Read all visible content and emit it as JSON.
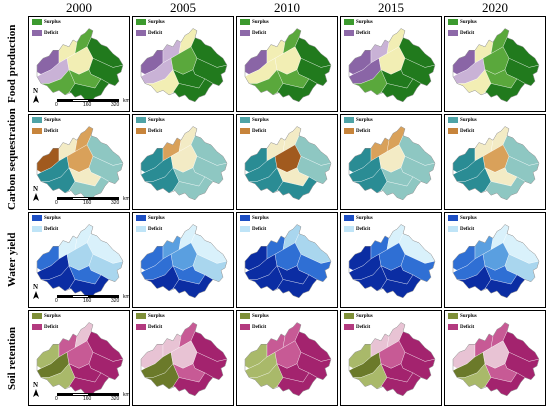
{
  "years": [
    "2000",
    "2005",
    "2010",
    "2015",
    "2020"
  ],
  "rows": [
    {
      "label": "Food production",
      "surplus": "Surplus",
      "deficit": "Deficit",
      "colors": {
        "sur_dark": "#217a1d",
        "sur_mid": "#5aa83c",
        "neutral": "#f2eeb4",
        "def_light": "#c9b2d6",
        "def_dark": "#8a65a6"
      },
      "legend_sur": "#3c9a2e",
      "legend_def": "#8d69a8"
    },
    {
      "label": "Carbon sequestration",
      "surplus": "Surplus",
      "deficit": "Deficit",
      "colors": {
        "sur_dark": "#2a8c94",
        "sur_mid": "#8ec7c2",
        "neutral": "#f3ebc5",
        "def_light": "#d9a15a",
        "def_dark": "#a15a1e"
      },
      "legend_sur": "#4fa3a6",
      "legend_def": "#c7843b"
    },
    {
      "label": "Water yield",
      "surplus": "Surplus",
      "deficit": "Deficit",
      "colors": {
        "sur_dark": "#0b2da3",
        "sur_mid": "#2f6fd4",
        "neutral": "#a9d6ee",
        "def_light": "#d9f1fb",
        "def_dark": "#5a9fe0"
      },
      "legend_sur": "#1d4fc4",
      "legend_def": "#bfe4f7"
    },
    {
      "label": "Soil retention",
      "surplus": "Surplus",
      "deficit": "Deficit",
      "colors": {
        "sur_dark": "#6b7a2a",
        "sur_mid": "#a9b96a",
        "neutral": "#e8c3d4",
        "def_light": "#c75a95",
        "def_dark": "#a3236e"
      },
      "legend_sur": "#7e8f38",
      "legend_def": "#b33a7f"
    }
  ],
  "scale": {
    "t0": "0",
    "t1": "160",
    "t2": "320",
    "unit": "km"
  },
  "north_label": "N",
  "scale_years": [
    "2000"
  ]
}
